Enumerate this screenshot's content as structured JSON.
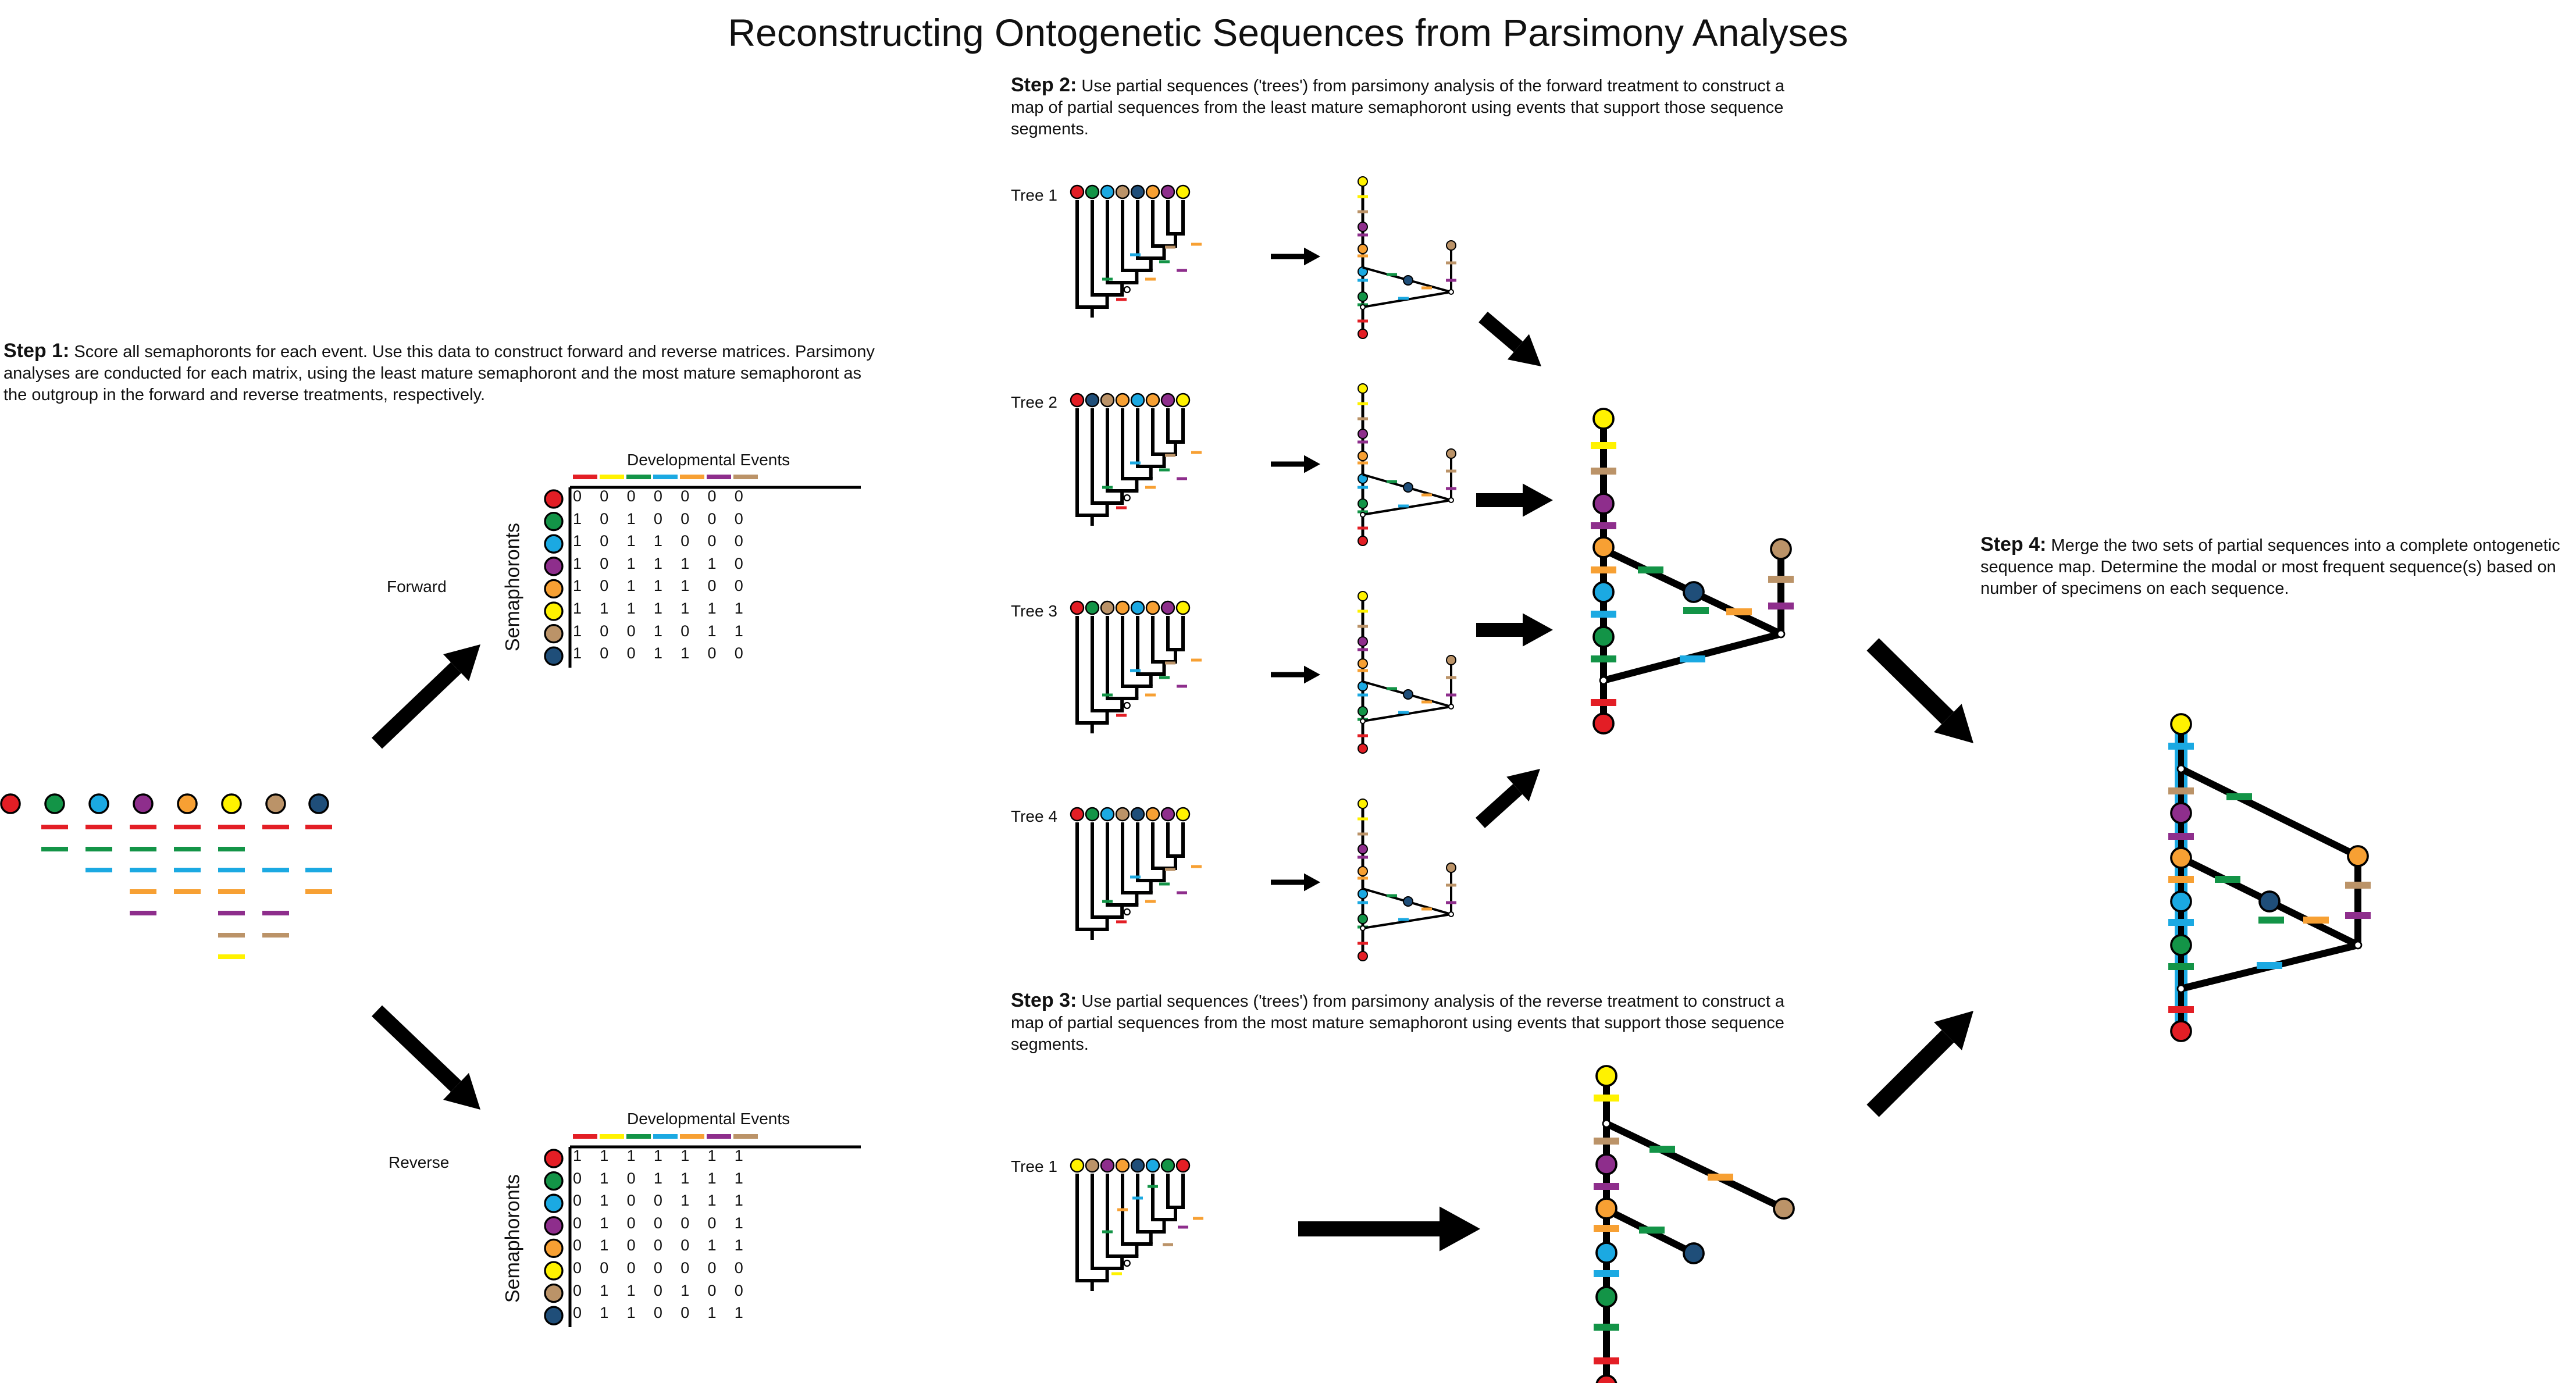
{
  "title": "Reconstructing Ontogenetic Sequences from Parsimony Analyses",
  "colors": {
    "red": "#e31e25",
    "green": "#139447",
    "blue": "#1ba9e2",
    "purple": "#8e2e8c",
    "orange": "#f7a033",
    "yellow": "#fff200",
    "tan": "#bb9368",
    "navy": "#1f4e79"
  },
  "semaphoront_colors": [
    "red",
    "green",
    "blue",
    "purple",
    "orange",
    "yellow",
    "tan",
    "navy"
  ],
  "event_colors": [
    "red",
    "yellow",
    "green",
    "blue",
    "orange",
    "purple",
    "tan"
  ],
  "step1": {
    "heading": "Step 1:",
    "text": "Score all semaphoronts for each event. Use this data to construct forward and reverse matrices. Parsimony analyses are conducted for each matrix, using the least mature semaphoront and the most mature semaphoront as the outgroup in the forward and reverse treatments, respectively."
  },
  "step2": {
    "heading": "Step 2:",
    "text": "Use partial sequences ('trees') from parsimony analysis of the forward treatment to construct a map of partial sequences from the least mature semaphoront using events that support those sequence segments."
  },
  "step3": {
    "heading": "Step 3:",
    "text": "Use partial sequences ('trees') from parsimony analysis of the reverse treatment to construct a map of partial sequences from the most mature semaphoront using events that support those sequence segments."
  },
  "step4": {
    "heading": "Step 4:",
    "text": "Merge the two sets of partial sequences into a complete ontogenetic sequence map. Determine the modal or most frequent sequence(s) based on number of specimens on each sequence."
  },
  "forward": {
    "label": "Forward",
    "events_label": "Developmental Events",
    "semaphoronts_label": "Semaphoronts",
    "rows": [
      [
        "0",
        "0",
        "0",
        "0",
        "0",
        "0",
        "0"
      ],
      [
        "1",
        "0",
        "1",
        "0",
        "0",
        "0",
        "0"
      ],
      [
        "1",
        "0",
        "1",
        "1",
        "0",
        "0",
        "0"
      ],
      [
        "1",
        "0",
        "1",
        "1",
        "1",
        "1",
        "0"
      ],
      [
        "1",
        "0",
        "1",
        "1",
        "1",
        "0",
        "0"
      ],
      [
        "1",
        "1",
        "1",
        "1",
        "1",
        "1",
        "1"
      ],
      [
        "1",
        "0",
        "0",
        "1",
        "0",
        "1",
        "1"
      ],
      [
        "1",
        "0",
        "0",
        "1",
        "1",
        "0",
        "0"
      ]
    ]
  },
  "reverse": {
    "label": "Reverse",
    "events_label": "Developmental Events",
    "semaphoronts_label": "Semaphoronts",
    "rows": [
      [
        "1",
        "1",
        "1",
        "1",
        "1",
        "1",
        "1"
      ],
      [
        "0",
        "1",
        "0",
        "1",
        "1",
        "1",
        "1"
      ],
      [
        "0",
        "1",
        "0",
        "0",
        "1",
        "1",
        "1"
      ],
      [
        "0",
        "1",
        "0",
        "0",
        "0",
        "0",
        "1"
      ],
      [
        "0",
        "1",
        "0",
        "0",
        "0",
        "1",
        "1"
      ],
      [
        "0",
        "0",
        "0",
        "0",
        "0",
        "0",
        "0"
      ],
      [
        "0",
        "1",
        "1",
        "0",
        "1",
        "0",
        "0"
      ],
      [
        "0",
        "1",
        "1",
        "0",
        "0",
        "1",
        "1"
      ]
    ]
  },
  "trees": {
    "forward": [
      "Tree 1",
      "Tree 2",
      "Tree 3",
      "Tree 4"
    ],
    "reverse": [
      "Tree 1"
    ]
  },
  "step1_event_chart": {
    "columns": [
      "red",
      "green",
      "blue",
      "purple",
      "orange",
      "yellow",
      "tan",
      "navy"
    ],
    "events_per_column": [
      [],
      [
        "red",
        "green"
      ],
      [
        "red",
        "green",
        "blue"
      ],
      [
        "red",
        "green",
        "blue",
        "orange",
        "purple"
      ],
      [
        "red",
        "green",
        "blue",
        "orange"
      ],
      [
        "red",
        "green",
        "blue",
        "orange",
        "purple",
        "tan",
        "yellow"
      ],
      [
        "red",
        "blue",
        "purple",
        "tan"
      ],
      [
        "red",
        "blue",
        "orange"
      ]
    ]
  }
}
